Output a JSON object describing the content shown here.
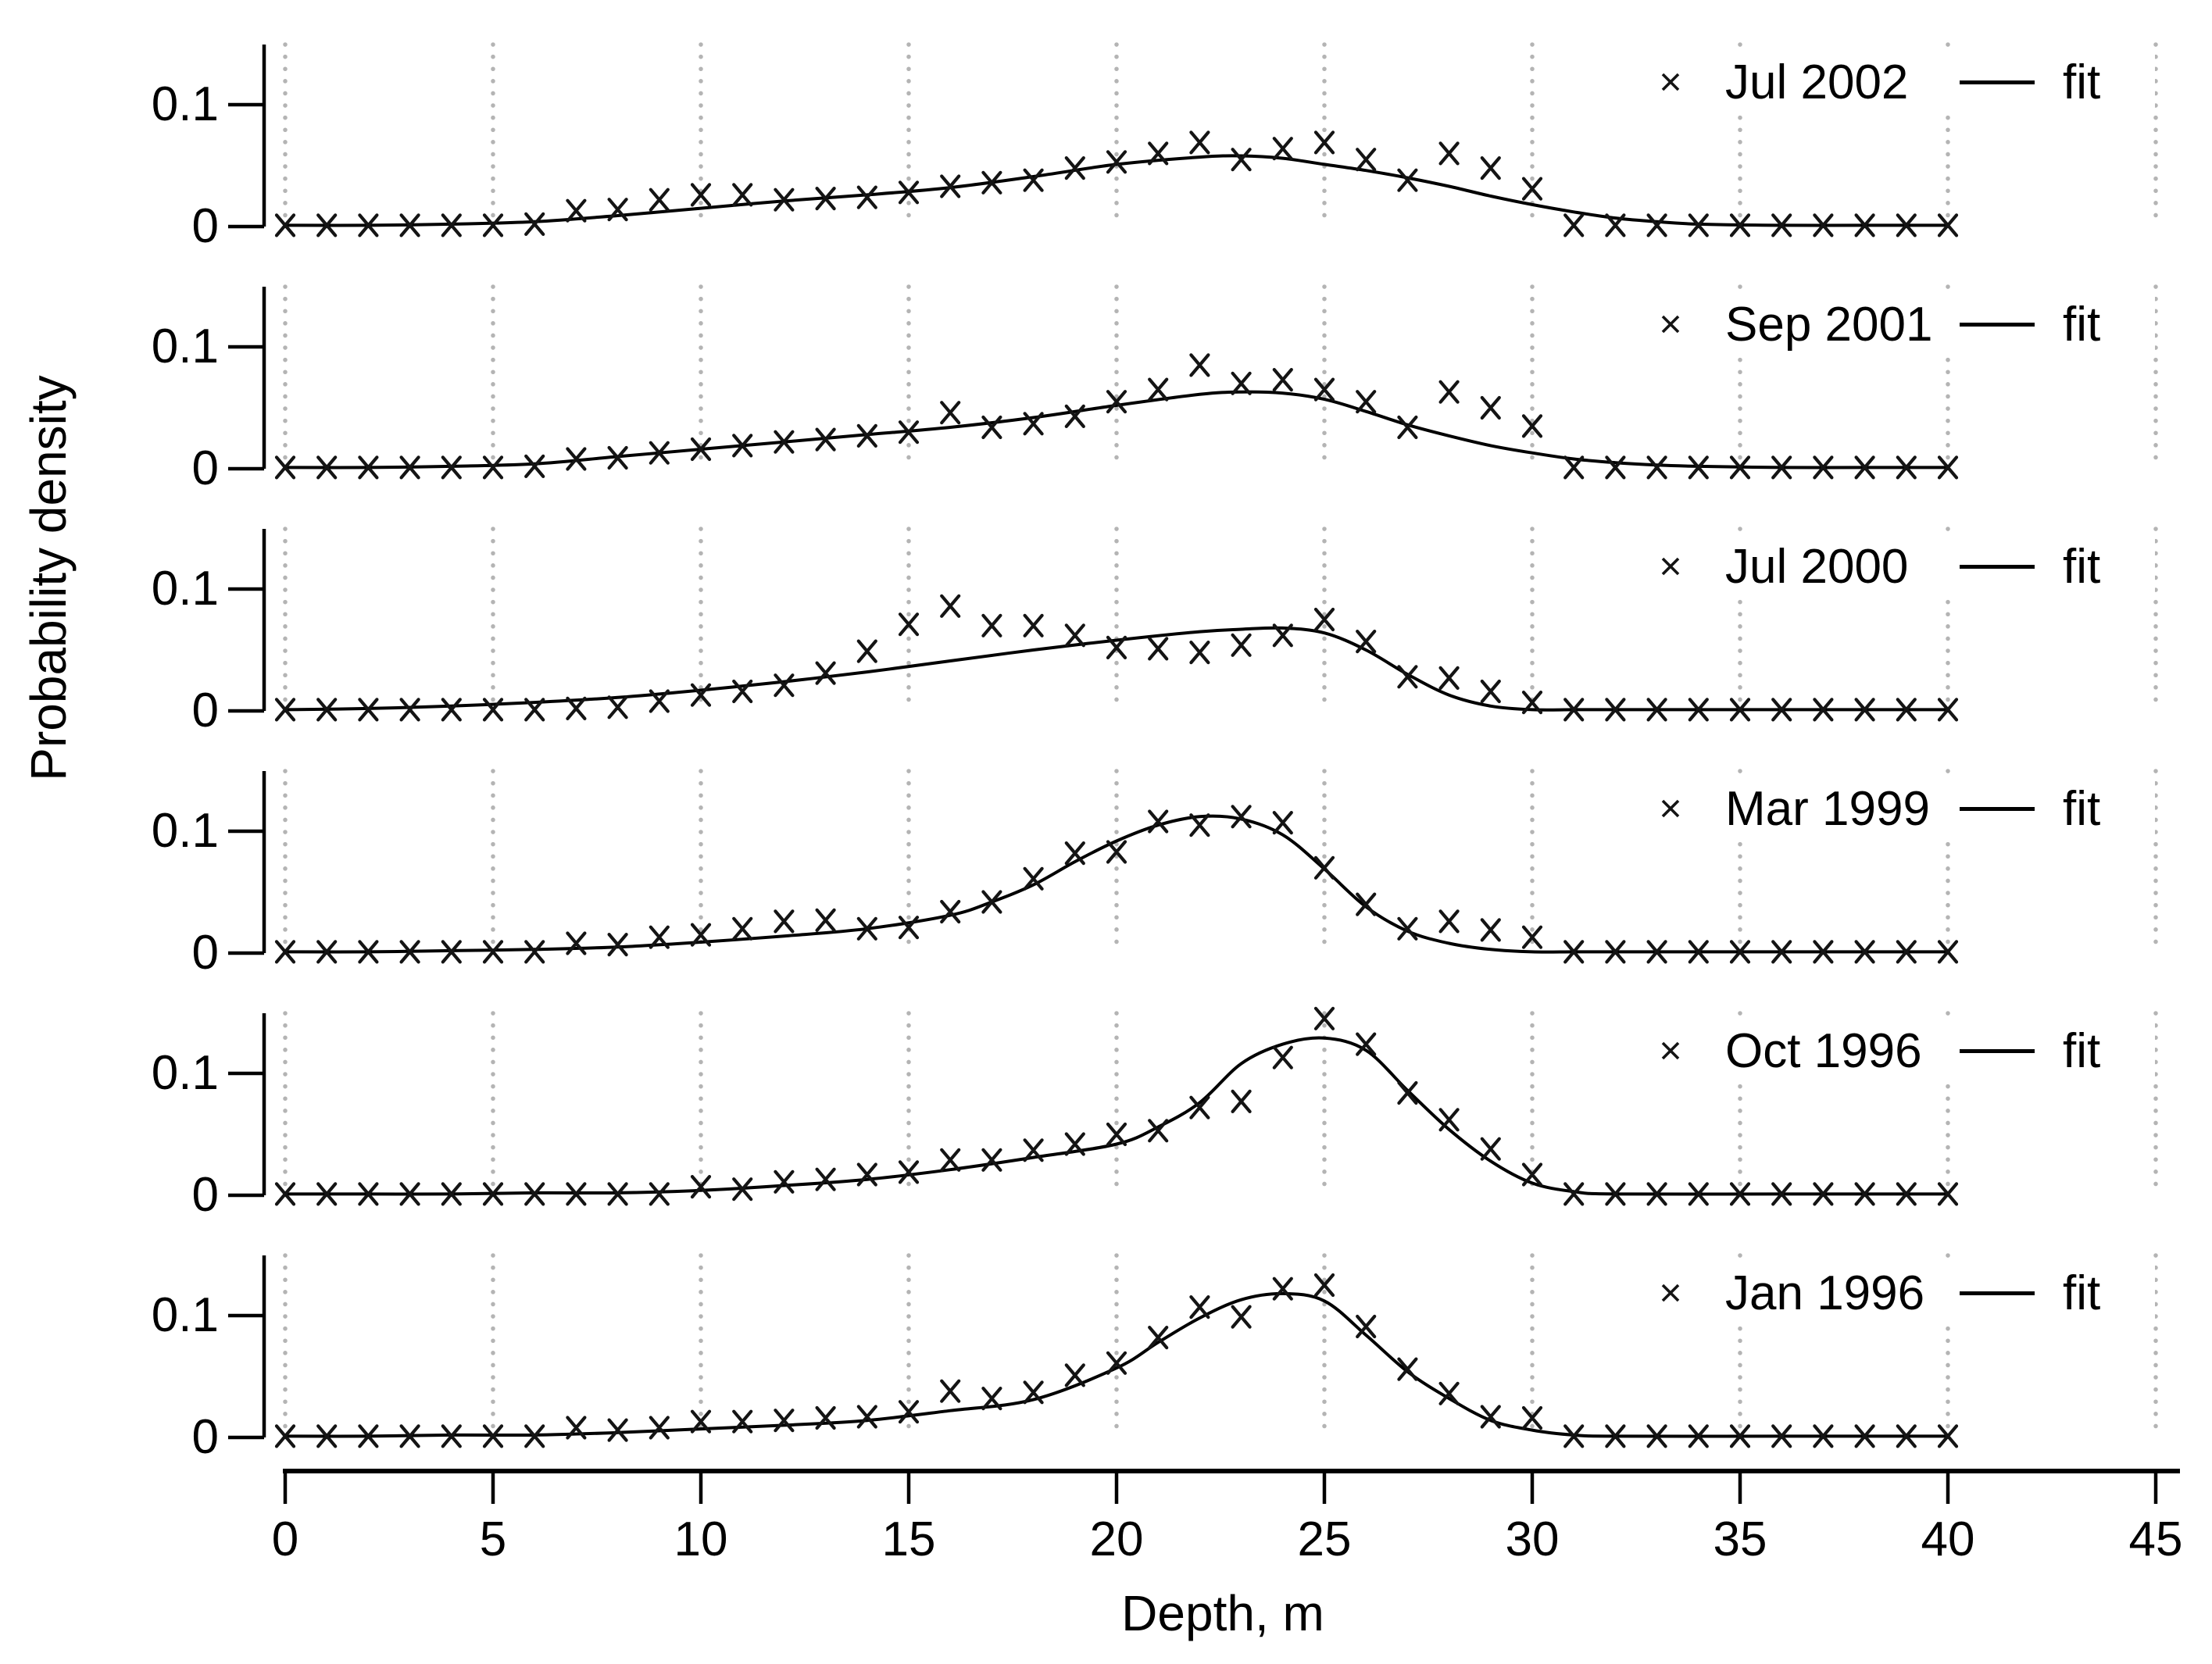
{
  "colors": {
    "background": "#ffffff",
    "marker": "#141414",
    "fit_line": "#000000",
    "grid": "#b4b4b4",
    "axis": "#000000"
  },
  "chart_data": {
    "type": "scatter",
    "layout": "six stacked small-multiple panels sharing one x axis, vertical dotted gridlines at each x tick, scatter x-markers with smooth fit curve per panel",
    "title": "",
    "xlabel": "Depth, m",
    "ylabel": "Probability density",
    "x_range": [
      0,
      45
    ],
    "x_ticks": [
      0,
      5,
      10,
      15,
      20,
      25,
      30,
      35,
      40,
      45
    ],
    "y_range": [
      0,
      0.15
    ],
    "y_ticks": [
      {
        "value": 0,
        "label": "0"
      },
      {
        "value": 0.1,
        "label": "0.1"
      }
    ],
    "grid": {
      "vertical_dotted": true,
      "horizontal": false
    },
    "marker_shape": "x",
    "depths": [
      0,
      1,
      2,
      3,
      4,
      5,
      6,
      7,
      8,
      9,
      10,
      11,
      12,
      13,
      14,
      15,
      16,
      17,
      18,
      19,
      20,
      21,
      22,
      23,
      24,
      25,
      26,
      27,
      28,
      29,
      30,
      31,
      32,
      33,
      34,
      35,
      36,
      37,
      38,
      39,
      40
    ],
    "panels": [
      {
        "label": "Jul 2002",
        "fit_label": "fit",
        "values": [
          0.001,
          0.001,
          0.001,
          0.001,
          0.001,
          0.001,
          0.002,
          0.013,
          0.014,
          0.022,
          0.026,
          0.026,
          0.022,
          0.023,
          0.024,
          0.028,
          0.033,
          0.036,
          0.038,
          0.048,
          0.053,
          0.06,
          0.069,
          0.055,
          0.064,
          0.069,
          0.055,
          0.038,
          0.06,
          0.048,
          0.031,
          0.001,
          0.001,
          0.001,
          0.001,
          0.001,
          0.001,
          0.001,
          0.001,
          0.001,
          0.001
        ],
        "fit_x": [
          0,
          2,
          4,
          6,
          8,
          10,
          12,
          14,
          16,
          18,
          20,
          22,
          23,
          24,
          25,
          26,
          27,
          28,
          29,
          30,
          31,
          32,
          33,
          34,
          36,
          38,
          40
        ],
        "fit_y": [
          0.001,
          0.001,
          0.002,
          0.004,
          0.009,
          0.015,
          0.021,
          0.026,
          0.032,
          0.041,
          0.051,
          0.057,
          0.058,
          0.056,
          0.051,
          0.046,
          0.04,
          0.033,
          0.025,
          0.018,
          0.012,
          0.007,
          0.004,
          0.002,
          0.001,
          0.001,
          0.001
        ]
      },
      {
        "label": "Sep 2001",
        "fit_label": "fit",
        "values": [
          0.001,
          0.001,
          0.001,
          0.001,
          0.001,
          0.001,
          0.002,
          0.008,
          0.009,
          0.013,
          0.016,
          0.019,
          0.022,
          0.024,
          0.027,
          0.03,
          0.046,
          0.034,
          0.037,
          0.043,
          0.055,
          0.065,
          0.085,
          0.07,
          0.073,
          0.065,
          0.055,
          0.034,
          0.063,
          0.05,
          0.035,
          0.001,
          0.001,
          0.001,
          0.001,
          0.001,
          0.001,
          0.001,
          0.001,
          0.001,
          0.001
        ],
        "fit_x": [
          0,
          2,
          4,
          6,
          8,
          10,
          12,
          14,
          16,
          18,
          20,
          22,
          23,
          24,
          25,
          26,
          27,
          28,
          29,
          30,
          31,
          32,
          33,
          34,
          36,
          38,
          40
        ],
        "fit_y": [
          0.001,
          0.001,
          0.002,
          0.004,
          0.01,
          0.016,
          0.022,
          0.028,
          0.034,
          0.042,
          0.052,
          0.061,
          0.063,
          0.062,
          0.057,
          0.047,
          0.036,
          0.027,
          0.019,
          0.013,
          0.008,
          0.005,
          0.003,
          0.002,
          0.001,
          0.001,
          0.001
        ]
      },
      {
        "label": "Jul 2000",
        "fit_label": "fit",
        "values": [
          0.001,
          0.001,
          0.001,
          0.001,
          0.001,
          0.001,
          0.001,
          0.002,
          0.003,
          0.008,
          0.013,
          0.016,
          0.021,
          0.031,
          0.049,
          0.071,
          0.086,
          0.07,
          0.07,
          0.062,
          0.052,
          0.051,
          0.048,
          0.054,
          0.062,
          0.075,
          0.057,
          0.028,
          0.027,
          0.016,
          0.007,
          0.001,
          0.001,
          0.001,
          0.001,
          0.001,
          0.001,
          0.001,
          0.001,
          0.001,
          0.001
        ],
        "fit_x": [
          0,
          2,
          4,
          6,
          8,
          10,
          12,
          14,
          16,
          18,
          20,
          22,
          23,
          24,
          25,
          26,
          27,
          28,
          29,
          30,
          31,
          32,
          34,
          36,
          40
        ],
        "fit_y": [
          0.001,
          0.002,
          0.004,
          0.007,
          0.011,
          0.017,
          0.024,
          0.032,
          0.041,
          0.05,
          0.058,
          0.065,
          0.067,
          0.068,
          0.064,
          0.05,
          0.03,
          0.013,
          0.004,
          0.001,
          0.001,
          0.001,
          0.001,
          0.001,
          0.001
        ]
      },
      {
        "label": "Mar 1999",
        "fit_label": "fit",
        "values": [
          0.001,
          0.001,
          0.001,
          0.001,
          0.001,
          0.001,
          0.001,
          0.008,
          0.007,
          0.013,
          0.015,
          0.02,
          0.026,
          0.027,
          0.02,
          0.021,
          0.034,
          0.042,
          0.061,
          0.082,
          0.083,
          0.108,
          0.105,
          0.112,
          0.107,
          0.07,
          0.04,
          0.02,
          0.026,
          0.019,
          0.013,
          0.001,
          0.001,
          0.001,
          0.001,
          0.001,
          0.001,
          0.001,
          0.001,
          0.001,
          0.001
        ],
        "fit_x": [
          0,
          2,
          4,
          6,
          8,
          10,
          12,
          14,
          16,
          17,
          18,
          19,
          20,
          21,
          22,
          23,
          24,
          25,
          26,
          27,
          28,
          29,
          30,
          31,
          32,
          36,
          40
        ],
        "fit_y": [
          0.001,
          0.001,
          0.002,
          0.003,
          0.005,
          0.009,
          0.014,
          0.02,
          0.031,
          0.042,
          0.056,
          0.075,
          0.092,
          0.105,
          0.112,
          0.11,
          0.097,
          0.069,
          0.038,
          0.018,
          0.008,
          0.003,
          0.001,
          0.001,
          0.001,
          0.001,
          0.001
        ]
      },
      {
        "label": "Oct 1996",
        "fit_label": "fit",
        "values": [
          0.001,
          0.001,
          0.001,
          0.001,
          0.001,
          0.001,
          0.001,
          0.001,
          0.001,
          0.001,
          0.007,
          0.005,
          0.011,
          0.013,
          0.017,
          0.019,
          0.029,
          0.029,
          0.037,
          0.042,
          0.05,
          0.053,
          0.072,
          0.077,
          0.113,
          0.145,
          0.124,
          0.084,
          0.062,
          0.038,
          0.017,
          0.001,
          0.001,
          0.001,
          0.001,
          0.001,
          0.001,
          0.001,
          0.001,
          0.001,
          0.001
        ],
        "fit_x": [
          0,
          2,
          4,
          6,
          8,
          10,
          12,
          14,
          16,
          18,
          20,
          21,
          22,
          23,
          24,
          25,
          26,
          27,
          28,
          29,
          30,
          31,
          32,
          36,
          40
        ],
        "fit_y": [
          0.001,
          0.001,
          0.001,
          0.002,
          0.002,
          0.004,
          0.008,
          0.013,
          0.021,
          0.031,
          0.042,
          0.056,
          0.076,
          0.108,
          0.124,
          0.129,
          0.119,
          0.086,
          0.054,
          0.028,
          0.01,
          0.003,
          0.001,
          0.001,
          0.001
        ]
      },
      {
        "label": "Jan 1996",
        "fit_label": "fit",
        "values": [
          0.001,
          0.001,
          0.001,
          0.001,
          0.001,
          0.001,
          0.001,
          0.008,
          0.006,
          0.008,
          0.013,
          0.013,
          0.014,
          0.016,
          0.017,
          0.021,
          0.038,
          0.032,
          0.037,
          0.051,
          0.061,
          0.082,
          0.107,
          0.099,
          0.122,
          0.125,
          0.091,
          0.056,
          0.036,
          0.017,
          0.016,
          0.001,
          0.001,
          0.001,
          0.001,
          0.001,
          0.001,
          0.001,
          0.001,
          0.001,
          0.001
        ],
        "fit_x": [
          0,
          2,
          4,
          6,
          8,
          10,
          12,
          14,
          16,
          18,
          20,
          21,
          22,
          23,
          24,
          25,
          26,
          27,
          28,
          29,
          30,
          31,
          32,
          36,
          40
        ],
        "fit_y": [
          0.001,
          0.001,
          0.002,
          0.002,
          0.004,
          0.007,
          0.01,
          0.014,
          0.022,
          0.031,
          0.057,
          0.078,
          0.098,
          0.113,
          0.118,
          0.112,
          0.084,
          0.054,
          0.032,
          0.014,
          0.006,
          0.002,
          0.001,
          0.001,
          0.001
        ]
      }
    ]
  }
}
